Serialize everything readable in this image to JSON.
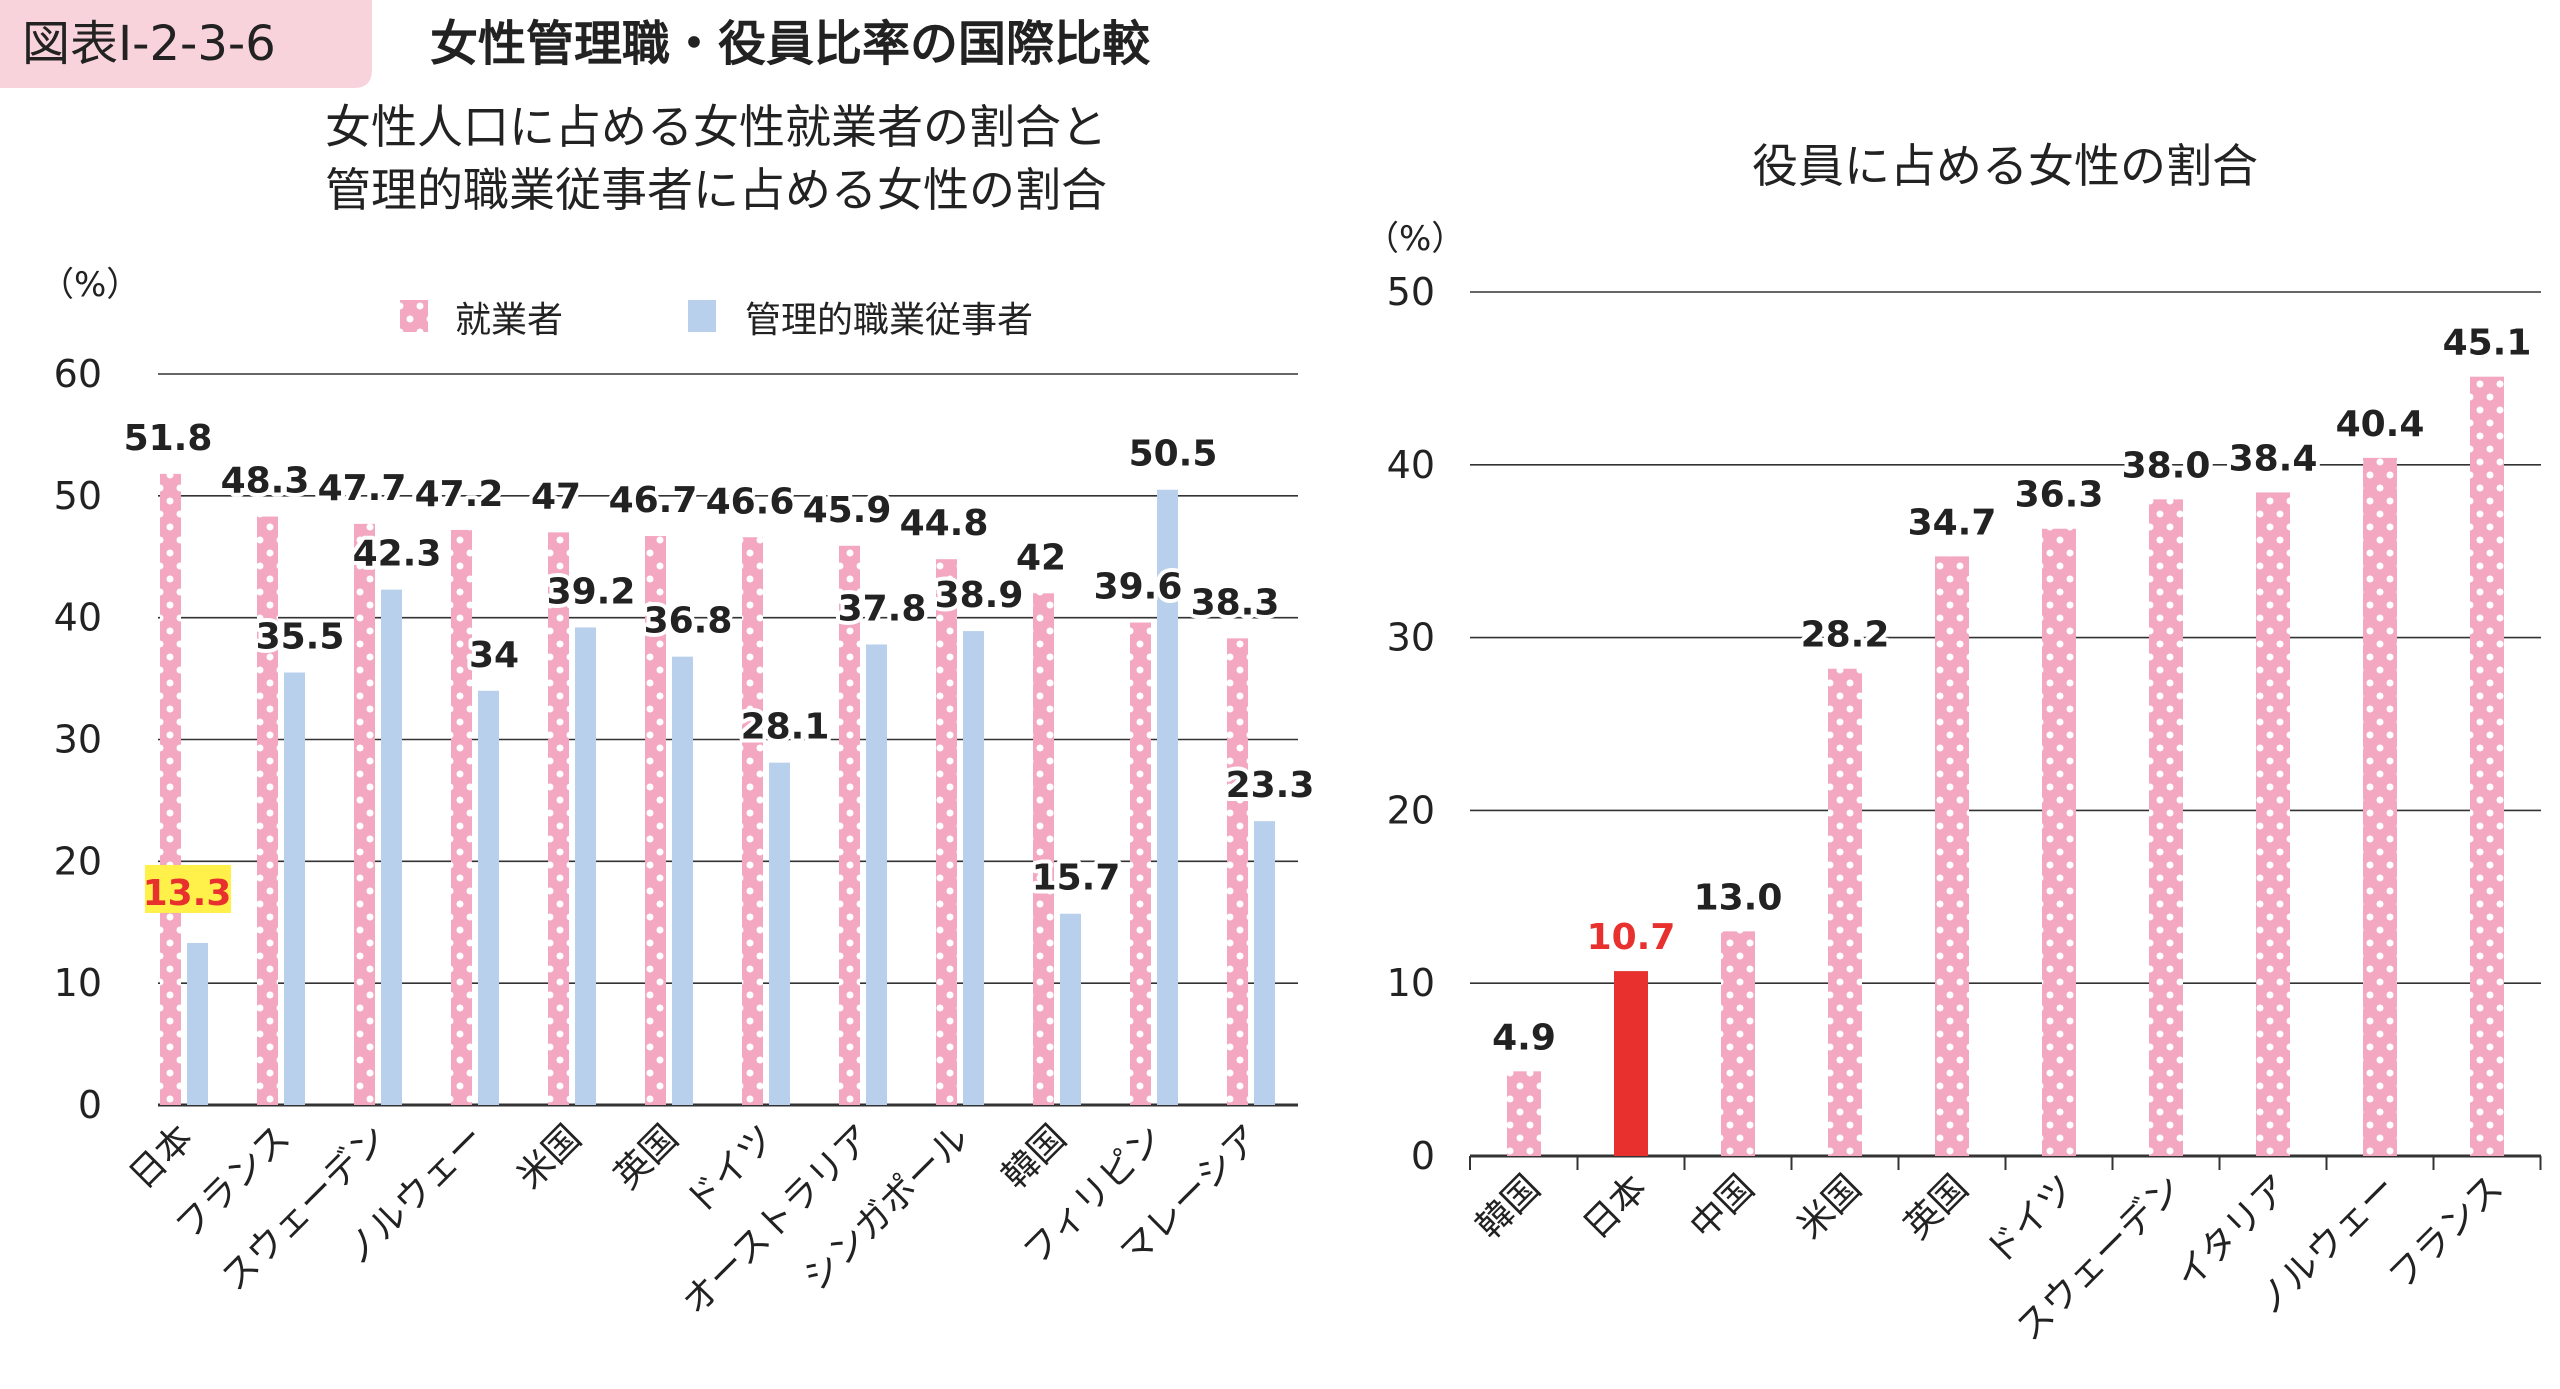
{
  "header": {
    "figure_no": "図表Ⅰ-2-3-6",
    "title": "女性管理職・役員比率の国際比較"
  },
  "colors": {
    "pink": "#f4a7c0",
    "blue": "#b9d0ec",
    "highlight_red": "#e8312e",
    "highlight_yellow": "#fff04a",
    "badge": "#f9d3dc"
  },
  "chart_data": [
    {
      "type": "bar",
      "title": [
        "女性人口に占める女性就業者の割合と",
        "管理的職業従事者に占める女性の割合"
      ],
      "ylabel": "（%）",
      "ylim": [
        0,
        60
      ],
      "yticks": [
        0,
        10,
        20,
        30,
        40,
        50,
        60
      ],
      "grid": true,
      "legend": "top",
      "categories": [
        "日本",
        "フランス",
        "スウェーデン",
        "ノルウェー",
        "米国",
        "英国",
        "ドイツ",
        "オーストラリア",
        "シンガポール",
        "韓国",
        "フィリピン",
        "マレーシア"
      ],
      "series": [
        {
          "name": "就業者",
          "values": [
            51.8,
            48.3,
            47.7,
            47.2,
            47,
            46.7,
            46.6,
            45.9,
            44.8,
            42,
            39.6,
            38.3
          ]
        },
        {
          "name": "管理的職業従事者",
          "values": [
            13.3,
            35.5,
            42.3,
            34,
            39.2,
            36.8,
            28.1,
            37.8,
            38.9,
            15.7,
            50.5,
            23.3
          ]
        }
      ],
      "highlight": {
        "category": "日本",
        "series": "管理的職業従事者"
      }
    },
    {
      "type": "bar",
      "title": "役員に占める女性の割合",
      "ylabel": "（%）",
      "ylim": [
        0,
        50
      ],
      "yticks": [
        0,
        10,
        20,
        30,
        40,
        50
      ],
      "grid": true,
      "categories": [
        "韓国",
        "日本",
        "中国",
        "米国",
        "英国",
        "ドイツ",
        "スウェーデン",
        "イタリア",
        "ノルウェー",
        "フランス"
      ],
      "values": [
        4.9,
        10.7,
        13.0,
        28.2,
        34.7,
        36.3,
        38.0,
        38.4,
        40.4,
        45.1
      ],
      "labels": [
        "4.9",
        "10.7",
        "13.0",
        "28.2",
        "34.7",
        "36.3",
        "38.0",
        "38.4",
        "40.4",
        "45.1"
      ],
      "highlight": {
        "category": "日本"
      }
    }
  ]
}
